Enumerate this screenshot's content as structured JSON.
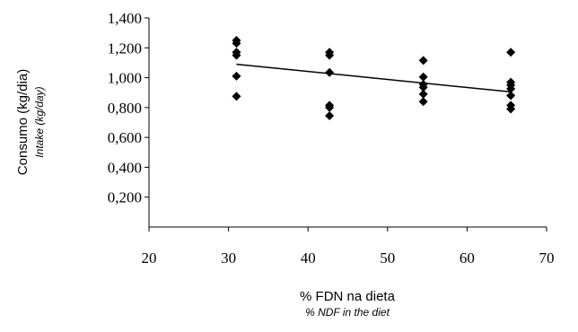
{
  "chart_data": {
    "type": "scatter",
    "title": "",
    "xlabel": "% FDN na dieta",
    "xlabel_sub": "% NDF in the diet",
    "ylabel": "Consumo (kg/dia)",
    "ylabel_sub": "Intake (kg/day)",
    "xlim": [
      20,
      70
    ],
    "ylim": [
      0,
      1.4
    ],
    "x_ticks": [
      "20",
      "30",
      "40",
      "50",
      "60",
      "70"
    ],
    "y_ticks": [
      "0,200",
      "0,400",
      "0,600",
      "0,800",
      "1,000",
      "1,200",
      "1,400"
    ],
    "grid": false,
    "legend": "none",
    "marker": "diamond",
    "marker_color": "#000000",
    "points": [
      {
        "x": 31,
        "y": 1.25
      },
      {
        "x": 31,
        "y": 1.23
      },
      {
        "x": 31,
        "y": 1.17
      },
      {
        "x": 31,
        "y": 1.15
      },
      {
        "x": 31,
        "y": 1.01
      },
      {
        "x": 31,
        "y": 0.875
      },
      {
        "x": 42.7,
        "y": 1.17
      },
      {
        "x": 42.7,
        "y": 1.15
      },
      {
        "x": 42.7,
        "y": 1.035
      },
      {
        "x": 42.7,
        "y": 0.815
      },
      {
        "x": 42.7,
        "y": 0.8
      },
      {
        "x": 42.7,
        "y": 0.745
      },
      {
        "x": 54.5,
        "y": 1.115
      },
      {
        "x": 54.5,
        "y": 1.005
      },
      {
        "x": 54.5,
        "y": 0.955
      },
      {
        "x": 54.5,
        "y": 0.935
      },
      {
        "x": 54.5,
        "y": 0.89
      },
      {
        "x": 54.5,
        "y": 0.84
      },
      {
        "x": 65.5,
        "y": 1.17
      },
      {
        "x": 65.5,
        "y": 0.97
      },
      {
        "x": 65.5,
        "y": 0.95
      },
      {
        "x": 65.5,
        "y": 0.925
      },
      {
        "x": 65.5,
        "y": 0.88
      },
      {
        "x": 65.5,
        "y": 0.815
      },
      {
        "x": 65.5,
        "y": 0.79
      }
    ],
    "trendline": {
      "x": [
        31,
        65.5
      ],
      "y": [
        1.09,
        0.905
      ]
    }
  }
}
